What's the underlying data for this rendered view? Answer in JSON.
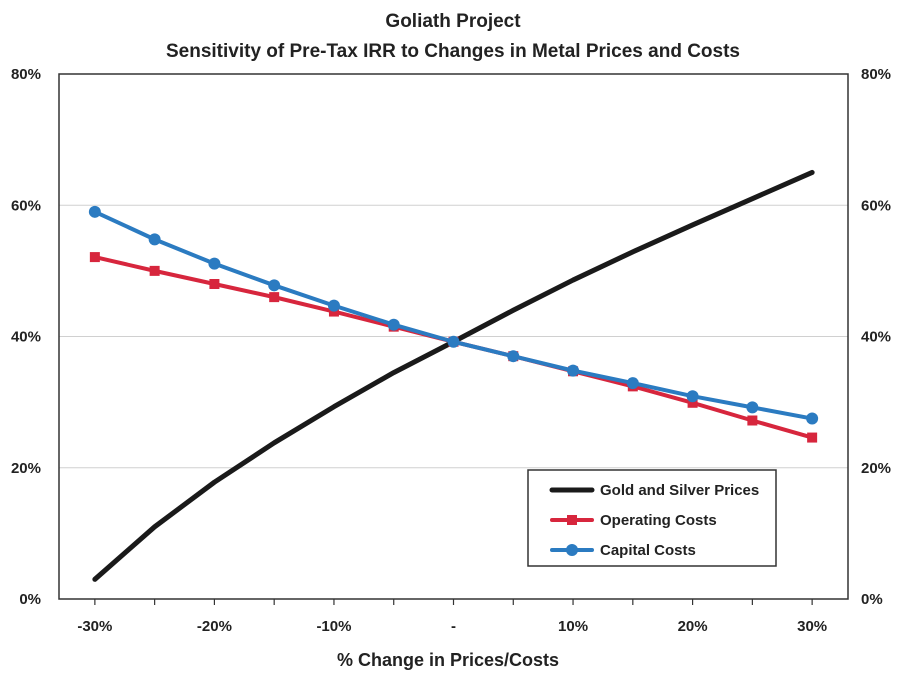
{
  "chart_data": {
    "type": "line",
    "title": "Goliath Project",
    "subtitle": "Sensitivity of Pre-Tax IRR to Changes in Metal Prices and Costs",
    "xlabel": "% Change in Prices/Costs",
    "ylabel": "",
    "x_values": [
      -30,
      -25,
      -20,
      -15,
      -10,
      -5,
      0,
      5,
      10,
      15,
      20,
      25,
      30
    ],
    "x_tick_values": [
      -30,
      -20,
      -10,
      0,
      10,
      20,
      30
    ],
    "x_tick_labels": [
      "-30%",
      "-20%",
      "-10%",
      "-",
      "10%",
      "20%",
      "30%"
    ],
    "ylim": [
      0,
      80
    ],
    "y_ticks": [
      0,
      20,
      40,
      60,
      80
    ],
    "y_tick_labels": [
      "0%",
      "20%",
      "40%",
      "60%",
      "80%"
    ],
    "y_right_ticks": [
      0,
      20,
      40,
      60,
      80
    ],
    "y_right_tick_labels": [
      "0%",
      "20%",
      "40%",
      "60%",
      "80%"
    ],
    "grid": "horizontal",
    "legend_position": "bottom-right",
    "series": [
      {
        "name": "Gold and Silver Prices",
        "color": "#1a1a1a",
        "marker": "none",
        "values": [
          3.0,
          11.0,
          17.8,
          23.8,
          29.3,
          34.5,
          39.2,
          44.0,
          48.6,
          52.9,
          57.0,
          61.0,
          65.0
        ]
      },
      {
        "name": "Operating Costs",
        "color": "#d7263d",
        "marker": "square",
        "values": [
          52.1,
          50.0,
          48.0,
          46.0,
          43.8,
          41.5,
          39.2,
          37.0,
          34.7,
          32.4,
          29.9,
          27.2,
          24.6
        ]
      },
      {
        "name": "Capital Costs",
        "color": "#2b7bc1",
        "marker": "circle",
        "values": [
          59.0,
          54.8,
          51.1,
          47.8,
          44.7,
          41.8,
          39.2,
          37.0,
          34.8,
          32.9,
          30.9,
          29.2,
          27.5
        ]
      }
    ]
  }
}
